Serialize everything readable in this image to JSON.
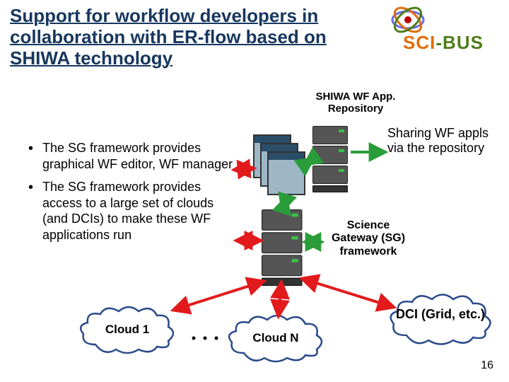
{
  "title": "Support for workflow developers in collaboration with ER-flow based on SHIWA technology",
  "logo": {
    "part1": "SCI",
    "part2": "-BUS",
    "color1": "#e36c09",
    "color2": "#4e7e1a"
  },
  "bullets": [
    "The SG framework provides graphical WF editor, WF manager",
    "The SG framework provides access to a large set of clouds (and DCIs) to make these WF applications run"
  ],
  "labels": {
    "repo": "SHIWA WF App.\nRepository",
    "share": "Sharing WF appls via the repository",
    "sg": "Science\nGateway (SG)\nframework",
    "cloud1": "Cloud 1",
    "cloudN": "Cloud N",
    "dci": "DCI (Grid, etc.)"
  },
  "colors": {
    "title": "#17375e",
    "arrow_green": "#2a9d3a",
    "arrow_red": "#e21a1c",
    "cloud_stroke": "#2a4a8b",
    "cloud_fill": "#ffffff"
  },
  "page": "16"
}
